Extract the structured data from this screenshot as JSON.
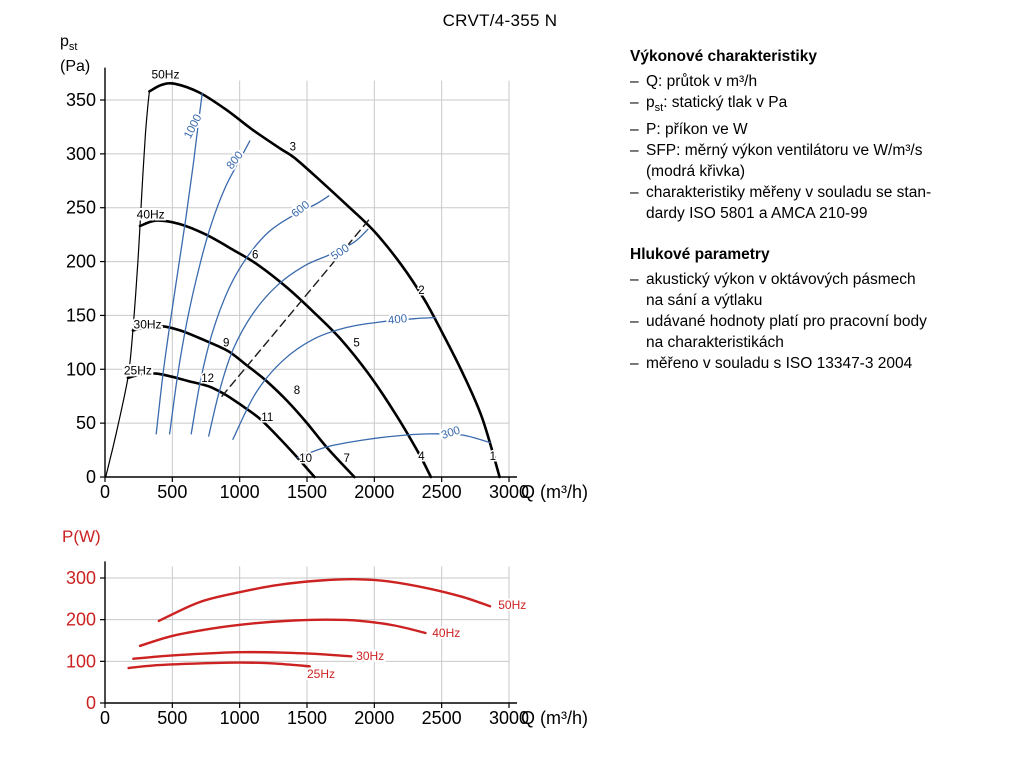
{
  "page_title": "CRVT/4-355 N",
  "info": {
    "bullet": "–",
    "sections": [
      {
        "title": "Výkonové charakteristiky",
        "items": [
          [
            "Q: průtok v m³/h"
          ],
          [
            "p_{st}: statický tlak v Pa"
          ],
          [
            "P: příkon ve W"
          ],
          [
            "SFP: měrný výkon ventilátoru ve W/m³/s",
            "(modrá křivka)"
          ],
          [
            "charakteristiky měřeny v souladu se stan-",
            "dardy ISO 5801 a AMCA 210-99"
          ]
        ]
      },
      {
        "title": "Hlukové parametry",
        "items": [
          [
            "akustický výkon v oktávových pásmech",
            "na sání a výtlaku"
          ],
          [
            "udávané hodnoty platí pro pracovní body",
            "na charakteristikách"
          ],
          [
            "měřeno v souladu s ISO 13347-3 2004"
          ]
        ]
      }
    ]
  },
  "chart_data": [
    {
      "type": "line",
      "name": "pressure-flow",
      "title": "CRVT/4-355 N",
      "xlabel": "Q (m³/h)",
      "ylabel_lines": [
        "p_{st}",
        "(Pa)"
      ],
      "xlim": [
        0,
        3000
      ],
      "ylim": [
        0,
        380
      ],
      "xticks": [
        0,
        500,
        1000,
        1500,
        2000,
        2500,
        3000
      ],
      "yticks": [
        0,
        50,
        100,
        150,
        200,
        250,
        300,
        350
      ],
      "grid": true,
      "grid_color": "#c9c9c9",
      "xtick_color": "#000000",
      "ytick_color": "#000000",
      "accent_blue": "#3a6aad",
      "series": [
        {
          "name": "surge-line",
          "color": "#000000",
          "width": 1.2,
          "points": [
            [
              5,
              0
            ],
            [
              60,
              28
            ],
            [
              100,
              50
            ],
            [
              140,
              73
            ],
            [
              170,
              92
            ],
            [
              190,
              112
            ],
            [
              207,
              136
            ],
            [
              228,
              170
            ],
            [
              244,
              200
            ],
            [
              260,
              233
            ],
            [
              280,
              278
            ],
            [
              300,
              318
            ],
            [
              316,
              342
            ],
            [
              330,
              358
            ]
          ]
        },
        {
          "name": "fan-curve-50Hz",
          "color": "#000000",
          "width": 2.6,
          "points": [
            [
              330,
              358
            ],
            [
              420,
              364
            ],
            [
              520,
              365
            ],
            [
              700,
              357
            ],
            [
              900,
              341
            ],
            [
              1100,
              322
            ],
            [
              1300,
              305
            ],
            [
              1410,
              296
            ],
            [
              1600,
              275
            ],
            [
              1800,
              252
            ],
            [
              2000,
              228
            ],
            [
              2200,
              197
            ],
            [
              2370,
              165
            ],
            [
              2500,
              135
            ],
            [
              2650,
              98
            ],
            [
              2800,
              55
            ],
            [
              2930,
              0
            ]
          ]
        },
        {
          "name": "fan-curve-40Hz",
          "color": "#000000",
          "width": 2.6,
          "points": [
            [
              260,
              233
            ],
            [
              380,
              238
            ],
            [
              550,
              235
            ],
            [
              750,
              225
            ],
            [
              950,
              211
            ],
            [
              1135,
              197
            ],
            [
              1350,
              176
            ],
            [
              1550,
              153
            ],
            [
              1750,
              128
            ],
            [
              1950,
              97
            ],
            [
              2150,
              60
            ],
            [
              2330,
              22
            ],
            [
              2420,
              0
            ]
          ]
        },
        {
          "name": "fan-curve-30Hz",
          "color": "#000000",
          "width": 2.6,
          "points": [
            [
              207,
              136
            ],
            [
              300,
              139
            ],
            [
              420,
              140
            ],
            [
              560,
              136
            ],
            [
              700,
              129
            ],
            [
              830,
              122
            ],
            [
              926,
              116
            ],
            [
              1050,
              104
            ],
            [
              1200,
              89
            ],
            [
              1350,
              71
            ],
            [
              1500,
              50
            ],
            [
              1650,
              27
            ],
            [
              1852,
              0
            ]
          ]
        },
        {
          "name": "fan-curve-25Hz",
          "color": "#000000",
          "width": 2.6,
          "points": [
            [
              170,
              92
            ],
            [
              260,
              95
            ],
            [
              380,
              96
            ],
            [
              500,
              93
            ],
            [
              620,
              89
            ],
            [
              720,
              86
            ],
            [
              793,
              83
            ],
            [
              900,
              76
            ],
            [
              1020,
              66
            ],
            [
              1150,
              54
            ],
            [
              1280,
              38
            ],
            [
              1400,
              22
            ],
            [
              1556,
              0
            ]
          ]
        },
        {
          "name": "sfp-curve-1000",
          "color": "#3a6aad",
          "width": 1.3,
          "points": [
            [
              380,
              40
            ],
            [
              430,
              95
            ],
            [
              480,
              140
            ],
            [
              540,
              190
            ],
            [
              600,
              240
            ],
            [
              650,
              285
            ],
            [
              690,
              325
            ],
            [
              722,
              356
            ]
          ]
        },
        {
          "name": "sfp-curve-800",
          "color": "#3a6aad",
          "width": 1.3,
          "points": [
            [
              480,
              40
            ],
            [
              540,
              95
            ],
            [
              610,
              145
            ],
            [
              700,
              195
            ],
            [
              790,
              235
            ],
            [
              890,
              268
            ],
            [
              990,
              292
            ],
            [
              1075,
              312
            ]
          ]
        },
        {
          "name": "sfp-curve-600",
          "color": "#3a6aad",
          "width": 1.3,
          "points": [
            [
              640,
              40
            ],
            [
              710,
              90
            ],
            [
              800,
              135
            ],
            [
              920,
              175
            ],
            [
              1060,
              205
            ],
            [
              1220,
              228
            ],
            [
              1400,
              243
            ],
            [
              1560,
              253
            ],
            [
              1662,
              261
            ]
          ]
        },
        {
          "name": "sfp-curve-500",
          "color": "#3a6aad",
          "width": 1.3,
          "points": [
            [
              770,
              38
            ],
            [
              850,
              80
            ],
            [
              950,
              118
            ],
            [
              1100,
              152
            ],
            [
              1280,
              178
            ],
            [
              1480,
              196
            ],
            [
              1680,
              207
            ],
            [
              1850,
              218
            ],
            [
              1952,
              230
            ]
          ]
        },
        {
          "name": "sfp-curve-400",
          "color": "#3a6aad",
          "width": 1.3,
          "points": [
            [
              950,
              35
            ],
            [
              1120,
              78
            ],
            [
              1320,
              108
            ],
            [
              1550,
              128
            ],
            [
              1800,
              139
            ],
            [
              2050,
              144
            ],
            [
              2300,
              147
            ],
            [
              2455,
              148
            ]
          ]
        },
        {
          "name": "sfp-curve-300",
          "color": "#3a6aad",
          "width": 1.3,
          "points": [
            [
              1430,
              18
            ],
            [
              1650,
              28
            ],
            [
              1900,
              34
            ],
            [
              2150,
              38
            ],
            [
              2400,
              40
            ],
            [
              2650,
              39
            ],
            [
              2858,
              32
            ]
          ]
        },
        {
          "name": "optimum-dashed-line",
          "color": "#1a1a1a",
          "width": 1.4,
          "dash": "8 5",
          "points": [
            [
              869,
              75
            ],
            [
              1968,
              240
            ]
          ]
        }
      ],
      "curve_labels": [
        {
          "text": "50Hz",
          "x": 345,
          "y": 370,
          "size": 12,
          "color": "#000000",
          "rot": 0,
          "anchor": "start",
          "halo": true
        },
        {
          "text": "40Hz",
          "x": 235,
          "y": 240,
          "size": 12,
          "color": "#000000",
          "rot": 0,
          "anchor": "start",
          "halo": true
        },
        {
          "text": "30Hz",
          "x": 212,
          "y": 138,
          "size": 12,
          "color": "#000000",
          "rot": 0,
          "anchor": "start",
          "halo": true
        },
        {
          "text": "25Hz",
          "x": 140,
          "y": 95,
          "size": 12,
          "color": "#000000",
          "rot": 0,
          "anchor": "start",
          "halo": true
        },
        {
          "text": "1000",
          "x": 676,
          "y": 324,
          "size": 11.5,
          "color": "#3a6aad",
          "rot": -63,
          "anchor": "middle",
          "halo": true
        },
        {
          "text": "800",
          "x": 985,
          "y": 292,
          "size": 11.5,
          "color": "#3a6aad",
          "rot": -52,
          "anchor": "middle",
          "halo": true
        },
        {
          "text": "600",
          "x": 1468,
          "y": 246,
          "size": 11.5,
          "color": "#3a6aad",
          "rot": -38,
          "anchor": "middle",
          "halo": true
        },
        {
          "text": "500",
          "x": 1760,
          "y": 206,
          "size": 11.5,
          "color": "#3a6aad",
          "rot": -33,
          "anchor": "middle",
          "halo": true
        },
        {
          "text": "400",
          "x": 2175,
          "y": 143,
          "size": 11.5,
          "color": "#3a6aad",
          "rot": -6,
          "anchor": "middle",
          "halo": true
        },
        {
          "text": "300",
          "x": 2575,
          "y": 38,
          "size": 11.5,
          "color": "#3a6aad",
          "rot": -18,
          "anchor": "middle",
          "halo": true
        }
      ],
      "point_labels": [
        {
          "text": "1",
          "x": 2880,
          "y": 16
        },
        {
          "text": "2",
          "x": 2350,
          "y": 170
        },
        {
          "text": "3",
          "x": 1395,
          "y": 303
        },
        {
          "text": "4",
          "x": 2350,
          "y": 16
        },
        {
          "text": "5",
          "x": 1868,
          "y": 121
        },
        {
          "text": "6",
          "x": 1115,
          "y": 203
        },
        {
          "text": "7",
          "x": 1795,
          "y": 14
        },
        {
          "text": "8",
          "x": 1425,
          "y": 77
        },
        {
          "text": "9",
          "x": 900,
          "y": 121
        },
        {
          "text": "10",
          "x": 1490,
          "y": 14
        },
        {
          "text": "11",
          "x": 1205,
          "y": 52
        },
        {
          "text": "12",
          "x": 762,
          "y": 88
        }
      ]
    },
    {
      "type": "line",
      "name": "power-flow",
      "xlabel": "Q (m³/h)",
      "ylabel_lines": [
        "P(W)"
      ],
      "xlim": [
        0,
        3000
      ],
      "ylim": [
        0,
        340
      ],
      "xticks": [
        0,
        500,
        1000,
        1500,
        2000,
        2500,
        3000
      ],
      "yticks": [
        0,
        100,
        200,
        300
      ],
      "grid": true,
      "grid_color": "#c9c9c9",
      "xtick_color": "#000000",
      "ytick_color": "#cc2222",
      "series": [
        {
          "name": "power-curve-50Hz",
          "color": "#cc2222",
          "width": 2.4,
          "points": [
            [
              400,
              197
            ],
            [
              700,
              242
            ],
            [
              1000,
              266
            ],
            [
              1300,
              284
            ],
            [
              1600,
              294
            ],
            [
              1850,
              297
            ],
            [
              2100,
              292
            ],
            [
              2400,
              275
            ],
            [
              2650,
              255
            ],
            [
              2860,
              232
            ]
          ]
        },
        {
          "name": "power-curve-40Hz",
          "color": "#cc2222",
          "width": 2.4,
          "points": [
            [
              260,
              137
            ],
            [
              500,
              161
            ],
            [
              800,
              179
            ],
            [
              1100,
              191
            ],
            [
              1400,
              198
            ],
            [
              1650,
              200
            ],
            [
              1900,
              197
            ],
            [
              2150,
              186
            ],
            [
              2380,
              168
            ]
          ]
        },
        {
          "name": "power-curve-30Hz",
          "color": "#cc2222",
          "width": 2.4,
          "points": [
            [
              210,
              106
            ],
            [
              450,
              113
            ],
            [
              700,
              118
            ],
            [
              1000,
              122
            ],
            [
              1300,
              121
            ],
            [
              1600,
              117
            ],
            [
              1830,
              112
            ]
          ]
        },
        {
          "name": "power-curve-25Hz",
          "color": "#cc2222",
          "width": 2.4,
          "points": [
            [
              175,
              84
            ],
            [
              400,
              91
            ],
            [
              700,
              95
            ],
            [
              1000,
              97
            ],
            [
              1250,
              95
            ],
            [
              1520,
              88
            ]
          ]
        }
      ],
      "curve_labels": [
        {
          "text": "50Hz",
          "x": 2920,
          "y": 225,
          "size": 12,
          "color": "#cc2222",
          "rot": 0,
          "anchor": "start",
          "halo": true
        },
        {
          "text": "40Hz",
          "x": 2430,
          "y": 158,
          "size": 12,
          "color": "#cc2222",
          "rot": 0,
          "anchor": "start",
          "halo": true
        },
        {
          "text": "30Hz",
          "x": 1865,
          "y": 103,
          "size": 12,
          "color": "#cc2222",
          "rot": 0,
          "anchor": "start",
          "halo": true
        },
        {
          "text": "25Hz",
          "x": 1500,
          "y": 60,
          "size": 12,
          "color": "#cc2222",
          "rot": 0,
          "anchor": "start",
          "halo": true
        }
      ],
      "point_labels": []
    }
  ]
}
